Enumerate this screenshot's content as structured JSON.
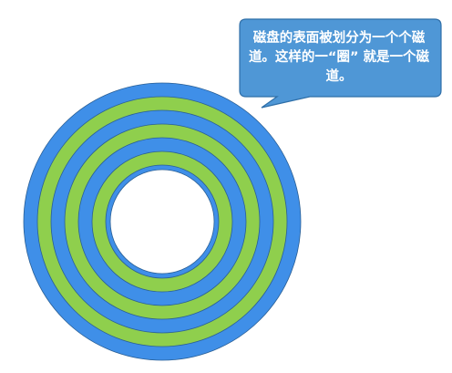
{
  "disk": {
    "ring_colors": [
      "#3f8fe8",
      "#8fcf4d",
      "#3f8fe8",
      "#8fcf4d",
      "#3f8fe8",
      "#8fcf4d",
      "#3f8fe8",
      "#8fcf4d"
    ],
    "hole_color": "#ffffff",
    "outline_color": "#2a5f95"
  },
  "callout": {
    "text": "磁盘的表面被划分为一个个磁道。这样的一“圈” 就是一个磁道。",
    "fill_color": "#4f97d6",
    "border_color": "#2f6fa8",
    "text_color": "#ffffff"
  }
}
